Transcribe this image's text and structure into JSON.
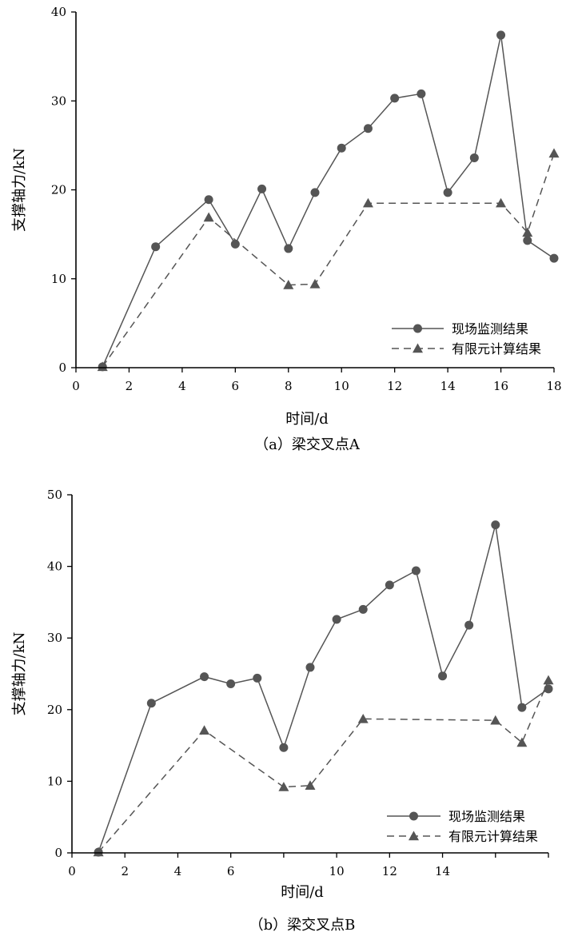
{
  "chart_data": [
    {
      "type": "line",
      "caption": "（a）梁交叉点A",
      "xlabel": "时间/d",
      "ylabel": "支撑轴力/kN",
      "xlim": [
        0,
        18
      ],
      "ylim": [
        0,
        40
      ],
      "x_ticks": [
        "0",
        "2",
        "4",
        "6",
        "8",
        "10",
        "12",
        "14",
        "16",
        "18"
      ],
      "y_ticks": [
        "0",
        "10",
        "20",
        "30",
        "40"
      ],
      "grid": false,
      "legend_position": "bottom-right",
      "series": [
        {
          "name": "现场监测结果",
          "marker": "circle",
          "line_style": "solid",
          "color": "#555555",
          "x": [
            1,
            3,
            5,
            6,
            7,
            8,
            9,
            10,
            11,
            12,
            13,
            14,
            15,
            16,
            17,
            18
          ],
          "y": [
            0.1,
            13.6,
            18.9,
            13.9,
            20.1,
            13.4,
            19.7,
            24.7,
            26.9,
            30.3,
            30.8,
            19.7,
            23.6,
            37.4,
            14.3,
            12.3
          ]
        },
        {
          "name": "有限元计算结果",
          "marker": "triangle",
          "line_style": "dashed",
          "color": "#555555",
          "x": [
            1,
            5,
            8,
            9,
            11,
            16,
            17,
            18
          ],
          "y": [
            0.1,
            16.9,
            9.3,
            9.4,
            18.5,
            18.5,
            15.2,
            24.1
          ]
        }
      ]
    },
    {
      "type": "line",
      "caption": "（b）梁交叉点B",
      "xlabel": "时间/d",
      "ylabel": "支撑轴力/kN",
      "xlim": [
        0,
        18
      ],
      "ylim": [
        0,
        50
      ],
      "x_ticks": [
        "0",
        "2",
        "4",
        "6",
        "10",
        "12",
        "14"
      ],
      "x_tick_values": [
        0,
        2,
        4,
        6,
        10,
        12,
        14
      ],
      "x_minor_ticks": [
        8,
        16,
        18
      ],
      "y_ticks": [
        "0",
        "10",
        "20",
        "30",
        "40",
        "50"
      ],
      "grid": false,
      "legend_position": "bottom-right",
      "series": [
        {
          "name": "现场监测结果",
          "marker": "circle",
          "line_style": "solid",
          "color": "#555555",
          "x": [
            1,
            3,
            5,
            6,
            7,
            8,
            9,
            10,
            11,
            12,
            13,
            14,
            15,
            16,
            17,
            18
          ],
          "y": [
            0.1,
            20.9,
            24.6,
            23.6,
            24.4,
            14.7,
            25.9,
            32.6,
            34.0,
            37.4,
            39.4,
            24.7,
            31.8,
            45.8,
            20.3,
            22.9
          ]
        },
        {
          "name": "有限元计算结果",
          "marker": "triangle",
          "line_style": "dashed",
          "color": "#555555",
          "x": [
            1,
            5,
            8,
            9,
            11,
            16,
            17,
            18
          ],
          "y": [
            0.1,
            17.1,
            9.2,
            9.4,
            18.7,
            18.5,
            15.4,
            24.1
          ]
        }
      ]
    }
  ]
}
